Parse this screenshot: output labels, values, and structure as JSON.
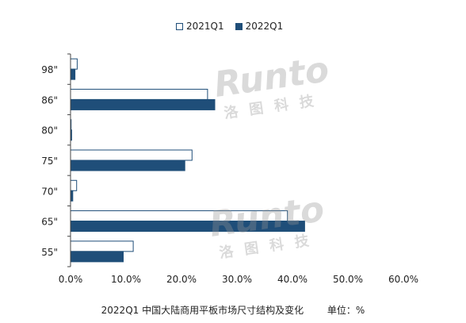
{
  "legend": {
    "series_a_label": "2021Q1",
    "series_b_label": "2022Q1"
  },
  "caption": {
    "text": "2022Q1 中国大陆商用平板市场尺寸结构及变化",
    "unit": "单位：%"
  },
  "watermark": {
    "brand": "Runto",
    "sub": "洛图科技"
  },
  "colors": {
    "series_a_fill": "#ffffff",
    "series_a_stroke": "#1f4e79",
    "series_b_fill": "#1f4e79",
    "axis": "#444444"
  },
  "chart_data": {
    "type": "bar",
    "orientation": "horizontal",
    "categories": [
      "98\"",
      "86\"",
      "80\"",
      "75\"",
      "70\"",
      "65\"",
      "55\""
    ],
    "series": [
      {
        "name": "2021Q1",
        "values": [
          1.2,
          24.7,
          0.1,
          21.9,
          1.1,
          39.1,
          11.3
        ]
      },
      {
        "name": "2022Q1",
        "values": [
          0.8,
          26.0,
          0.2,
          20.6,
          0.4,
          42.2,
          9.5
        ]
      }
    ],
    "xlim": [
      0,
      60
    ],
    "xticks": [
      "0.0%",
      "10.0%",
      "20.0%",
      "30.0%",
      "40.0%",
      "50.0%",
      "60.0%"
    ],
    "grid": false,
    "legend_position": "top"
  }
}
